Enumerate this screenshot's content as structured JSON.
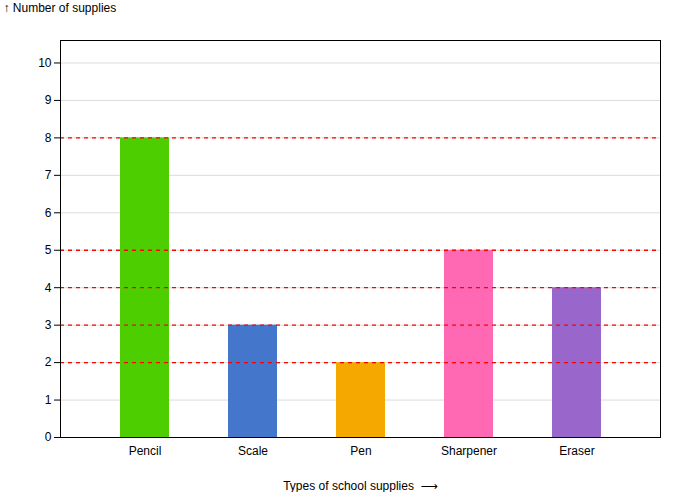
{
  "chart_data": {
    "type": "bar",
    "categories": [
      "Pencil",
      "Scale",
      "Pen",
      "Sharpener",
      "Eraser"
    ],
    "values": [
      8,
      3,
      2,
      5,
      4
    ],
    "colors": [
      "#4cce00",
      "#4477cc",
      "#f5a800",
      "#ff69b4",
      "#9966cc"
    ],
    "xlabel": "Types of school supplies  ⟶",
    "ylabel": "↑ Number of supplies",
    "ylim": [
      0,
      10.6
    ],
    "yticks": [
      0,
      1,
      2,
      3,
      4,
      5,
      6,
      7,
      8,
      9,
      10
    ],
    "grid": true,
    "reference_lines": {
      "values": [
        8,
        5,
        4,
        3,
        2
      ],
      "color": "red",
      "line_style": "dashed"
    }
  }
}
